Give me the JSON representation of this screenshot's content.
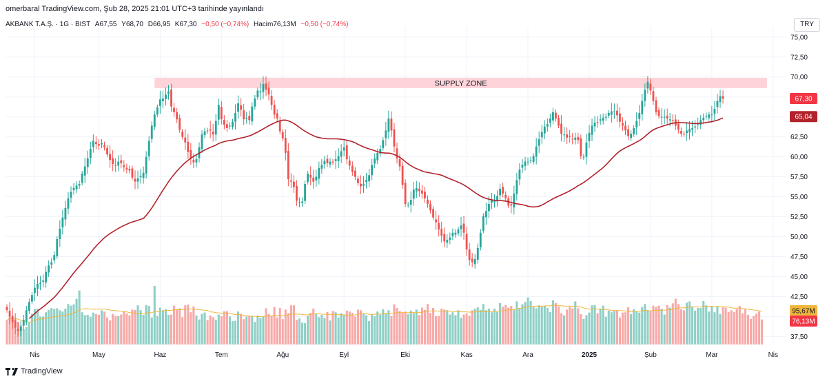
{
  "header": {
    "published": "omerbaral TradingView.com, Şub 28, 2025 21:01 UTC+3 tarihinde yayınlandı"
  },
  "legend": {
    "symbol": "AKBANK T.A.Ş. · 1G · BIST",
    "open": "A67,55",
    "high": "Y68,70",
    "low": "D66,95",
    "close": "K67,30",
    "change": "−0,50 (−0,74%)",
    "volume": "Hacim76,13M",
    "volume_change": "−0,50 (−0,74%)"
  },
  "currency": "TRY",
  "footer": {
    "brand": "TradingView"
  },
  "colors": {
    "up": "#26a69a",
    "down": "#ef5350",
    "ma": "#b2222b",
    "vol_ma": "#f0b63c",
    "zone": "#ffcdd2"
  },
  "chart_data": {
    "type": "candlestick",
    "title": "AKBANK T.A.Ş. · 1G · BIST",
    "ylim": [
      36.5,
      75.5
    ],
    "y_ticks": [
      "37,50",
      "40,00",
      "42,50",
      "45,00",
      "47,50",
      "50,00",
      "52,50",
      "55,00",
      "57,50",
      "60,00",
      "62,50",
      "65,00",
      "67,50",
      "70,00",
      "72,50",
      "75,00"
    ],
    "x_ticks": [
      "Nis",
      "May",
      "Haz",
      "Tem",
      "Ağu",
      "Eyl",
      "Eki",
      "Kas",
      "Ara",
      "2025",
      "Şub",
      "Mar",
      "Nis"
    ],
    "x_tick_index": [
      10,
      33,
      55,
      77,
      99,
      121,
      143,
      165,
      187,
      209,
      231,
      253,
      275
    ],
    "supply_zone": {
      "label": "SUPPLY ZONE",
      "low": 68.6,
      "high": 69.9
    },
    "last_price": {
      "value": 67.3,
      "label": "67,30"
    },
    "ma_value": {
      "value": 65.04,
      "label": "65,04"
    },
    "volume_labels": {
      "vol_ma": "95,67M",
      "last_volume": "76,13M"
    },
    "closes": [
      40.8,
      40.0,
      39.3,
      38.6,
      38.2,
      38.7,
      39.6,
      40.8,
      41.8,
      42.7,
      43.6,
      44.1,
      44.2,
      44.5,
      45.6,
      46.4,
      46.8,
      47.7,
      49.7,
      51.0,
      52.4,
      53.6,
      54.8,
      55.6,
      56.1,
      56.4,
      56.6,
      57.9,
      58.8,
      59.8,
      61.0,
      62.0,
      61.6,
      61.4,
      61.7,
      61.2,
      60.3,
      59.6,
      59.1,
      58.9,
      59.4,
      59.2,
      58.7,
      58.4,
      58.3,
      57.4,
      56.9,
      57.3,
      57.6,
      58.0,
      60.0,
      62.0,
      63.9,
      65.3,
      66.2,
      67.2,
      67.3,
      67.8,
      68.2,
      66.3,
      65.6,
      64.7,
      63.4,
      62.5,
      61.8,
      60.6,
      59.8,
      59.3,
      59.7,
      61.2,
      62.8,
      63.2,
      63.2,
      63.3,
      62.8,
      64.5,
      66.5,
      64.7,
      64.0,
      63.6,
      63.9,
      64.4,
      65.5,
      66.7,
      65.9,
      64.7,
      64.9,
      64.6,
      66.3,
      67.3,
      68.3,
      68.2,
      69.1,
      68.4,
      67.8,
      66.5,
      65.3,
      64.8,
      63.2,
      62.3,
      60.5,
      57.2,
      56.9,
      56.2,
      54.5,
      54.3,
      54.4,
      56.6,
      57.9,
      57.4,
      56.9,
      57.5,
      58.6,
      59.0,
      59.5,
      59.2,
      59.4,
      59.3,
      59.7,
      60.1,
      60.7,
      61.2,
      59.7,
      58.9,
      58.1,
      57.5,
      56.7,
      56.3,
      56.6,
      57.1,
      57.7,
      59.0,
      59.8,
      60.5,
      61.0,
      62.1,
      63.3,
      64.8,
      63.3,
      61.3,
      59.8,
      58.8,
      56.5,
      54.1,
      54.0,
      54.6,
      55.9,
      56.1,
      55.7,
      55.4,
      54.8,
      54.1,
      53.3,
      52.4,
      51.8,
      50.9,
      50.1,
      49.4,
      49.6,
      49.9,
      50.5,
      50.5,
      50.9,
      51.4,
      50.5,
      48.4,
      47.1,
      46.8,
      47.2,
      48.6,
      50.5,
      52.6,
      53.2,
      54.1,
      54.6,
      54.5,
      55.1,
      56.0,
      55.4,
      54.8,
      53.9,
      53.9,
      55.4,
      57.1,
      58.4,
      59.0,
      59.4,
      59.4,
      59.6,
      60.1,
      61.3,
      62.2,
      63.1,
      63.8,
      64.1,
      64.8,
      65.6,
      64.8,
      63.9,
      62.9,
      62.8,
      62.4,
      62.5,
      62.2,
      62.4,
      62.1,
      60.1,
      60.0,
      61.8,
      63.0,
      63.9,
      64.3,
      64.3,
      64.7,
      64.9,
      65.0,
      65.5,
      65.7,
      65.7,
      65.2,
      64.4,
      63.9,
      63.3,
      62.6,
      62.9,
      63.6,
      64.5,
      65.5,
      67.0,
      68.4,
      69.4,
      68.3,
      67.0,
      65.6,
      65.1,
      65.0,
      65.0,
      64.8,
      64.7,
      64.6,
      63.9,
      63.4,
      62.9,
      62.8,
      63.3,
      63.5,
      63.6,
      63.8,
      64.2,
      64.6,
      64.9,
      65.1,
      65.3,
      65.3,
      66.0,
      67.0,
      67.6,
      67.3
    ],
    "volumes": [
      74,
      84,
      82,
      77,
      69,
      58,
      46,
      53,
      68,
      93,
      108,
      109,
      85,
      85,
      98,
      105,
      111,
      108,
      110,
      104,
      100,
      109,
      123,
      118,
      122,
      139,
      164,
      98,
      89,
      90,
      84,
      97,
      93,
      90,
      104,
      100,
      82,
      73,
      93,
      87,
      86,
      91,
      100,
      94,
      88,
      106,
      105,
      119,
      104,
      90,
      120,
      117,
      82,
      178,
      87,
      112,
      104,
      107,
      90,
      91,
      118,
      106,
      110,
      83,
      119,
      121,
      98,
      116,
      88,
      76,
      93,
      97,
      74,
      88,
      83,
      75,
      91,
      86,
      101,
      101,
      85,
      71,
      72,
      100,
      93,
      77,
      85,
      86,
      86,
      69,
      88,
      80,
      85,
      110,
      93,
      86,
      114,
      82,
      111,
      77,
      106,
      95,
      119,
      119,
      75,
      79,
      66,
      65,
      87,
      96,
      109,
      94,
      83,
      90,
      81,
      99,
      73,
      102,
      98,
      82,
      95,
      91,
      103,
      100,
      96,
      85,
      106,
      104,
      93,
      89,
      71,
      92,
      86,
      100,
      91,
      107,
      95,
      104,
      87,
      122,
      111,
      102,
      97,
      100,
      92,
      103,
      95,
      106,
      89,
      112,
      105,
      123,
      96,
      111,
      86,
      87,
      109,
      106,
      104,
      91,
      98,
      89,
      104,
      81,
      91,
      94,
      87,
      104,
      109,
      113,
      105,
      123,
      104,
      109,
      98,
      109,
      99,
      126,
      115,
      120,
      112,
      117,
      105,
      131,
      111,
      122,
      129,
      143,
      132,
      114,
      110,
      119,
      115,
      117,
      111,
      99,
      134,
      126,
      116,
      95,
      89,
      106,
      114,
      110,
      131,
      110,
      92,
      78,
      89,
      97,
      119,
      120,
      95,
      109,
      118,
      84,
      103,
      98,
      102,
      104,
      82,
      97,
      98,
      113,
      92,
      107,
      101,
      97,
      113,
      123,
      104,
      101,
      118,
      114,
      118,
      109,
      91,
      120,
      112,
      125,
      139,
      123,
      107,
      104,
      127,
      131,
      114,
      103,
      111,
      111,
      132,
      119,
      100,
      117,
      98,
      117,
      92,
      113,
      112,
      99,
      104,
      99,
      108,
      117,
      95,
      107,
      90,
      78,
      87,
      94,
      100,
      76
    ]
  }
}
